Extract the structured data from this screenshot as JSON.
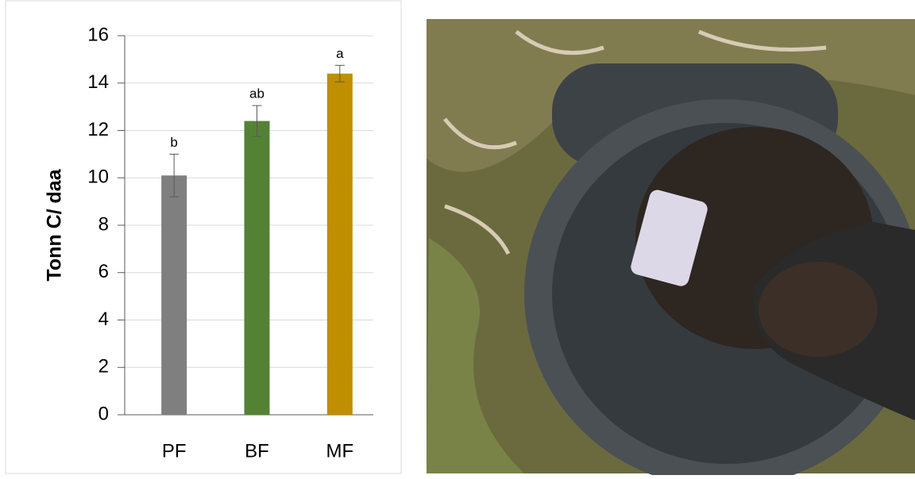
{
  "chart_data": {
    "type": "bar",
    "ylabel": "Tonn C/ daa",
    "categories": [
      "PF",
      "BF",
      "MF"
    ],
    "values": [
      10.1,
      12.4,
      14.4
    ],
    "errors": [
      0.9,
      0.65,
      0.35
    ],
    "significance_labels": [
      "b",
      "ab",
      "a"
    ],
    "colors": [
      "#7f7f7f",
      "#548235",
      "#bf8f00"
    ],
    "ylim": [
      0,
      16
    ],
    "yticks": [
      0,
      2,
      4,
      6,
      8,
      10,
      12,
      14,
      16
    ],
    "grid": true
  }
}
